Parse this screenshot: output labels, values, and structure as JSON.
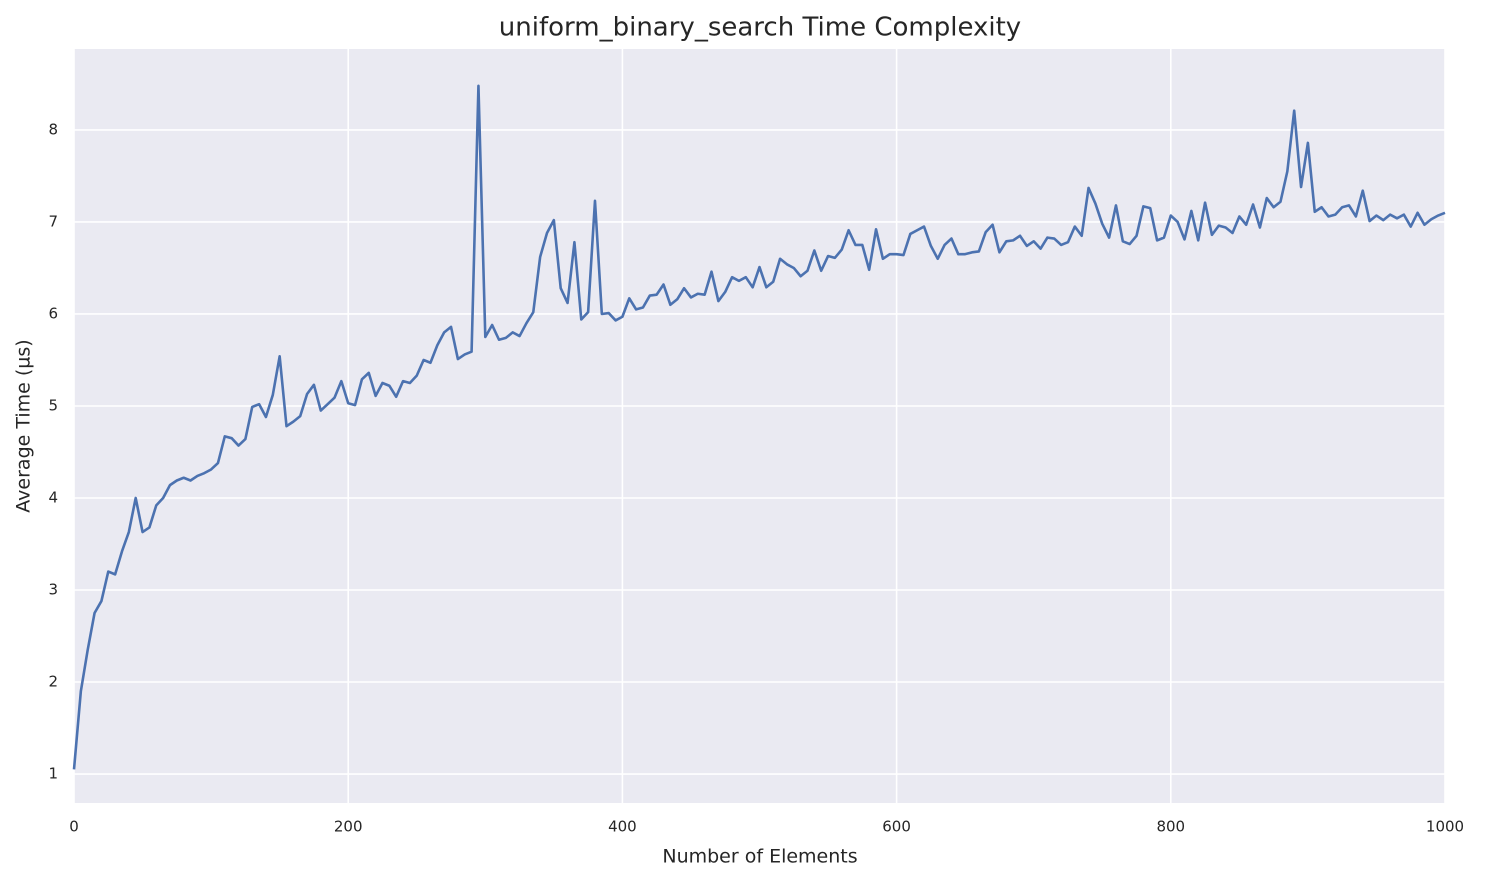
{
  "chart_data": {
    "type": "line",
    "title": "uniform_binary_search Time Complexity",
    "xlabel": "Number of Elements",
    "ylabel": "Average Time (µs)",
    "color": "#4c72b0",
    "grid": true,
    "xlim": [
      0,
      1000
    ],
    "ylim": [
      0.685,
      8.88
    ],
    "xticks": [
      0,
      200,
      400,
      600,
      800,
      1000
    ],
    "yticks": [
      1,
      2,
      3,
      4,
      5,
      6,
      7,
      8
    ],
    "x": [
      0,
      5,
      10,
      15,
      20,
      25,
      30,
      35,
      40,
      45,
      50,
      55,
      60,
      65,
      70,
      75,
      80,
      85,
      90,
      95,
      100,
      105,
      110,
      115,
      120,
      125,
      130,
      135,
      140,
      145,
      150,
      155,
      160,
      165,
      170,
      175,
      180,
      185,
      190,
      195,
      200,
      205,
      210,
      215,
      220,
      225,
      230,
      235,
      240,
      245,
      250,
      255,
      260,
      265,
      270,
      275,
      280,
      285,
      290,
      295,
      300,
      305,
      310,
      315,
      320,
      325,
      330,
      335,
      340,
      345,
      350,
      355,
      360,
      365,
      370,
      375,
      380,
      385,
      390,
      395,
      400,
      405,
      410,
      415,
      420,
      425,
      430,
      435,
      440,
      445,
      450,
      455,
      460,
      465,
      470,
      475,
      480,
      485,
      490,
      495,
      500,
      505,
      510,
      515,
      520,
      525,
      530,
      535,
      540,
      545,
      550,
      555,
      560,
      565,
      570,
      575,
      580,
      585,
      590,
      595,
      600,
      605,
      610,
      615,
      620,
      625,
      630,
      635,
      640,
      645,
      650,
      655,
      660,
      665,
      670,
      675,
      680,
      685,
      690,
      695,
      700,
      705,
      710,
      715,
      720,
      725,
      730,
      735,
      740,
      745,
      750,
      755,
      760,
      765,
      770,
      775,
      780,
      785,
      790,
      795,
      800,
      805,
      810,
      815,
      820,
      825,
      830,
      835,
      840,
      845,
      850,
      855,
      860,
      865,
      870,
      875,
      880,
      885,
      890,
      895,
      900,
      905,
      910,
      915,
      920,
      925,
      930,
      935,
      940,
      945,
      950,
      955,
      960,
      965,
      970,
      975,
      980,
      985,
      990,
      995,
      1000
    ],
    "values": [
      1.05,
      1.9,
      2.35,
      2.75,
      2.88,
      3.2,
      3.17,
      3.42,
      3.63,
      4.0,
      3.63,
      3.68,
      3.92,
      4.0,
      4.14,
      4.19,
      4.22,
      4.19,
      4.24,
      4.27,
      4.31,
      4.38,
      4.67,
      4.65,
      4.57,
      4.64,
      4.99,
      5.02,
      4.88,
      5.12,
      5.54,
      4.78,
      4.83,
      4.89,
      5.13,
      5.23,
      4.95,
      5.02,
      5.09,
      5.27,
      5.03,
      5.01,
      5.29,
      5.36,
      5.11,
      5.25,
      5.22,
      5.1,
      5.27,
      5.25,
      5.33,
      5.5,
      5.47,
      5.66,
      5.8,
      5.86,
      5.51,
      5.56,
      5.59,
      8.48,
      5.75,
      5.88,
      5.72,
      5.74,
      5.8,
      5.76,
      5.9,
      6.02,
      6.62,
      6.88,
      7.02,
      6.28,
      6.12,
      6.78,
      5.94,
      6.02,
      7.23,
      6.0,
      6.01,
      5.93,
      5.97,
      6.17,
      6.05,
      6.07,
      6.2,
      6.21,
      6.32,
      6.1,
      6.16,
      6.28,
      6.18,
      6.22,
      6.21,
      6.46,
      6.14,
      6.24,
      6.4,
      6.36,
      6.4,
      6.29,
      6.51,
      6.29,
      6.35,
      6.6,
      6.54,
      6.5,
      6.41,
      6.47,
      6.69,
      6.47,
      6.63,
      6.61,
      6.7,
      6.91,
      6.75,
      6.75,
      6.48,
      6.92,
      6.6,
      6.65,
      6.65,
      6.64,
      6.87,
      6.91,
      6.95,
      6.74,
      6.6,
      6.75,
      6.82,
      6.65,
      6.65,
      6.67,
      6.68,
      6.89,
      6.97,
      6.67,
      6.79,
      6.8,
      6.85,
      6.74,
      6.79,
      6.71,
      6.83,
      6.82,
      6.75,
      6.78,
      6.95,
      6.85,
      7.37,
      7.2,
      6.98,
      6.83,
      7.18,
      6.79,
      6.76,
      6.85,
      7.17,
      7.15,
      6.8,
      6.83,
      7.07,
      7.0,
      6.81,
      7.12,
      6.8,
      7.21,
      6.86,
      6.96,
      6.94,
      6.88,
      7.06,
      6.97,
      7.19,
      6.94,
      7.26,
      7.16,
      7.22,
      7.55,
      8.21,
      7.38,
      7.86,
      7.11,
      7.16,
      7.06,
      7.08,
      7.16,
      7.18,
      7.06,
      7.34,
      7.01,
      7.07,
      7.02,
      7.08,
      7.04,
      7.08,
      6.95,
      7.1,
      6.97,
      7.03,
      7.07,
      7.1
    ]
  }
}
